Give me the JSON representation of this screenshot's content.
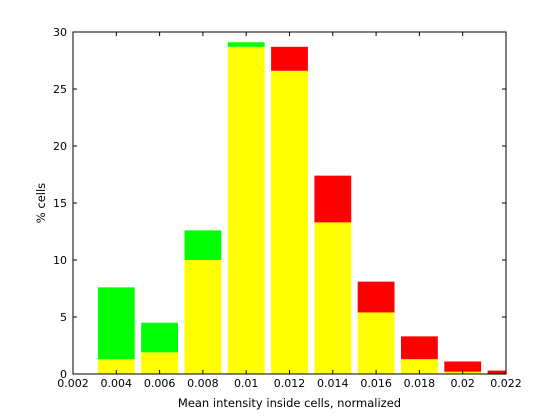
{
  "chart_data": {
    "type": "bar",
    "stacked": true,
    "title": "",
    "xlabel": "Mean intensity inside cells, normalized",
    "ylabel": "% cells",
    "xlim": [
      0.002,
      0.022
    ],
    "ylim": [
      0,
      30
    ],
    "x_ticks": [
      "0.002",
      "0.004",
      "0.006",
      "0.008",
      "0.01",
      "0.012",
      "0.014",
      "0.016",
      "0.018",
      "0.02",
      "0.022"
    ],
    "y_ticks": [
      "0",
      "5",
      "10",
      "15",
      "20",
      "25",
      "30"
    ],
    "grid": false,
    "legend": "none",
    "bar_width": 0.0017,
    "bars": [
      {
        "x": 0.004,
        "segments": [
          {
            "color": "#ffff00",
            "value": 1.3
          },
          {
            "color": "#00ff00",
            "value": 6.3
          }
        ]
      },
      {
        "x": 0.006,
        "segments": [
          {
            "color": "#ffff00",
            "value": 1.9
          },
          {
            "color": "#00ff00",
            "value": 2.6
          }
        ]
      },
      {
        "x": 0.008,
        "segments": [
          {
            "color": "#ffff00",
            "value": 10.0
          },
          {
            "color": "#00ff00",
            "value": 2.6
          }
        ]
      },
      {
        "x": 0.01,
        "segments": [
          {
            "color": "#ffff00",
            "value": 28.7
          },
          {
            "color": "#00ff00",
            "value": 0.4
          }
        ]
      },
      {
        "x": 0.012,
        "segments": [
          {
            "color": "#ffff00",
            "value": 26.6
          },
          {
            "color": "#ff0000",
            "value": 2.1
          }
        ]
      },
      {
        "x": 0.014,
        "segments": [
          {
            "color": "#ffff00",
            "value": 13.3
          },
          {
            "color": "#ff0000",
            "value": 4.1
          }
        ]
      },
      {
        "x": 0.016,
        "segments": [
          {
            "color": "#ffff00",
            "value": 5.4
          },
          {
            "color": "#ff0000",
            "value": 2.7
          }
        ]
      },
      {
        "x": 0.018,
        "segments": [
          {
            "color": "#ffff00",
            "value": 1.3
          },
          {
            "color": "#ff0000",
            "value": 2.0
          }
        ]
      },
      {
        "x": 0.02,
        "segments": [
          {
            "color": "#ffff00",
            "value": 0.2
          },
          {
            "color": "#ff0000",
            "value": 0.9
          }
        ]
      },
      {
        "x": 0.022,
        "segments": [
          {
            "color": "#ff0000",
            "value": 0.3
          }
        ]
      }
    ]
  }
}
